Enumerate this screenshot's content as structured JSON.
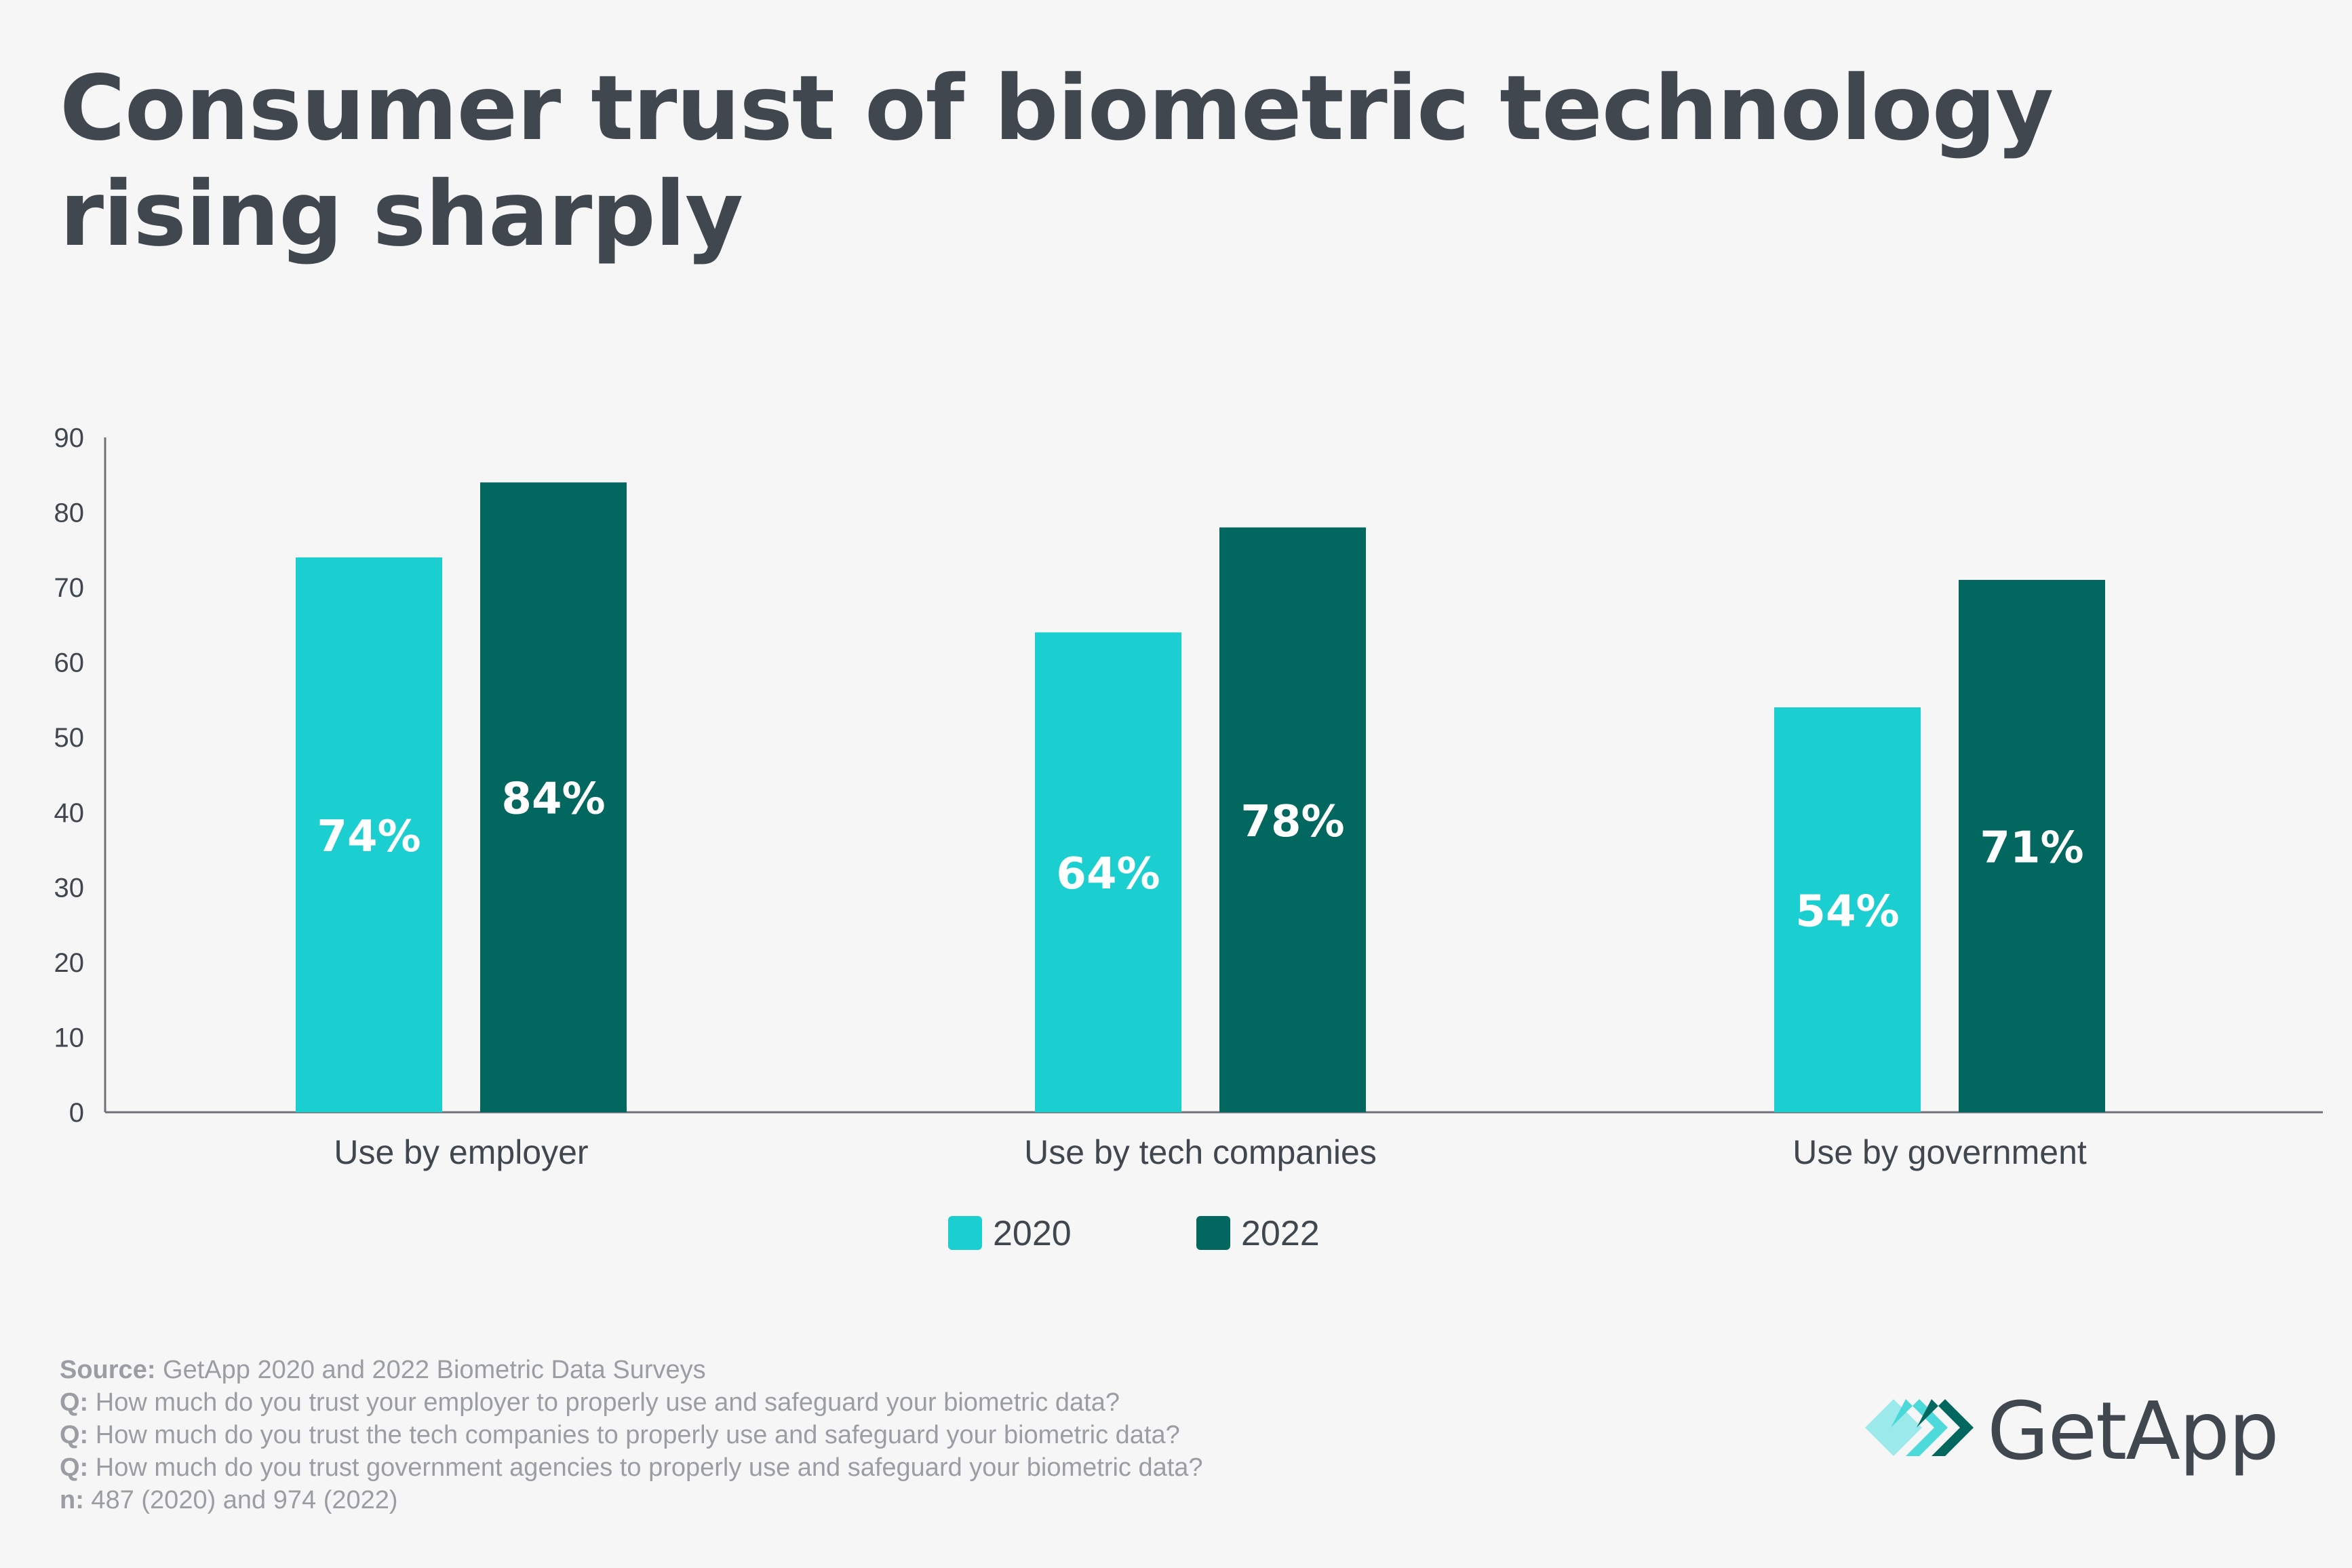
{
  "title": {
    "line1": "Consumer trust of biometric technology",
    "line2": "rising sharply"
  },
  "colors": {
    "series_2020": "#1bcfd0",
    "series_2022": "#02675f",
    "text_dark": "#40474f",
    "axis": "#6d7177"
  },
  "chart_data": {
    "type": "bar",
    "title": "Consumer trust of biometric technology rising sharply",
    "categories": [
      "Use by employer",
      "Use by tech companies",
      "Use by government"
    ],
    "series": [
      {
        "name": "2020",
        "values": [
          74,
          64,
          54
        ],
        "labels": [
          "74%",
          "64%",
          "54%"
        ]
      },
      {
        "name": "2022",
        "values": [
          84,
          78,
          71
        ],
        "labels": [
          "84%",
          "78%",
          "71%"
        ]
      }
    ],
    "ylim": [
      0,
      90
    ],
    "yticks": [
      0,
      10,
      20,
      30,
      40,
      50,
      60,
      70,
      80,
      90
    ],
    "xlabel": "",
    "ylabel": "",
    "grid": false,
    "legend_position": "bottom-center"
  },
  "footer": {
    "source_label": "Source:",
    "source_text": " GetApp 2020 and 2022 Biometric Data Surveys",
    "q_label": "Q:",
    "q1": " How much do you trust your employer to properly use and safeguard your biometric data?",
    "q2": " How much do you trust the tech companies to properly use and safeguard your biometric data?",
    "q3": " How much do you trust government agencies to properly use and safeguard your biometric data?",
    "n_label": "n:",
    "n_text": " 487 (2020) and 974 (2022)"
  },
  "logo": {
    "text": "GetApp",
    "icon": "getapp-chevrons-icon"
  }
}
